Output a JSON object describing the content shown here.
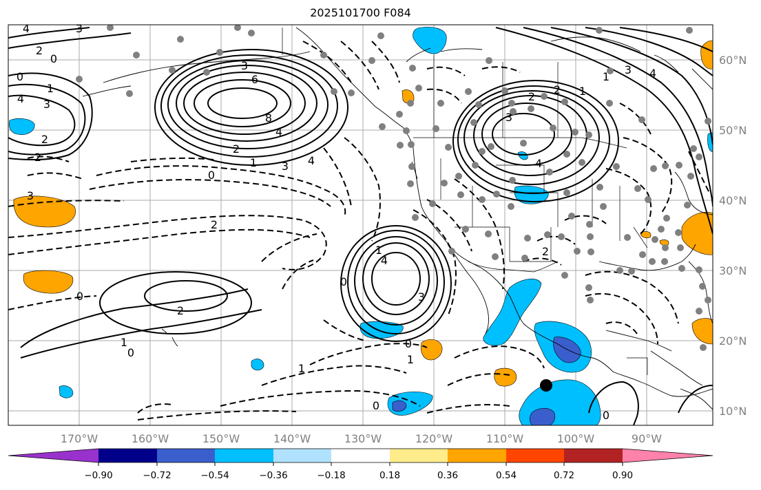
{
  "map": {
    "title": "2025101700 F084",
    "longitude_labels": [
      "170°W",
      "160°W",
      "150°W",
      "140°W",
      "130°W",
      "120°W",
      "110°W",
      "100°W",
      "90°W"
    ],
    "latitude_labels": [
      "60°N",
      "50°N",
      "40°N",
      "30°N",
      "20°N",
      "10°N"
    ],
    "contour_labels": [
      "4",
      "3",
      "2",
      "0",
      "1",
      "0",
      "4",
      "3",
      "6",
      "8",
      "4",
      "2",
      "1",
      "0",
      "3",
      "4",
      "3",
      "2",
      "1",
      "3",
      "4",
      "2",
      "1",
      "3",
      "2",
      "2",
      "0",
      "2",
      "1",
      "0",
      "1",
      "0",
      "4",
      "3",
      "1",
      "0",
      "0",
      "1",
      "0",
      "2",
      "2",
      "4",
      "3"
    ],
    "colors": {
      "negative_fill": "#00bfff",
      "strong_negative_fill": "#3a5fcd",
      "positive_fill": "#ffa500",
      "strong_positive_fill": "#ff4500",
      "station_marker": "#808080"
    }
  },
  "colorbar": {
    "tick_labels": [
      "−0.90",
      "−0.72",
      "−0.54",
      "−0.36",
      "−0.18",
      "0.18",
      "0.36",
      "0.54",
      "0.72",
      "0.90"
    ],
    "bin_colors": [
      "#9932cc",
      "#00008b",
      "#3a5fcd",
      "#00bfff",
      "#b0e2ff",
      "#ffffff",
      "#ffec8b",
      "#ffa500",
      "#ff4500",
      "#b22222",
      "#ff82ab"
    ]
  }
}
